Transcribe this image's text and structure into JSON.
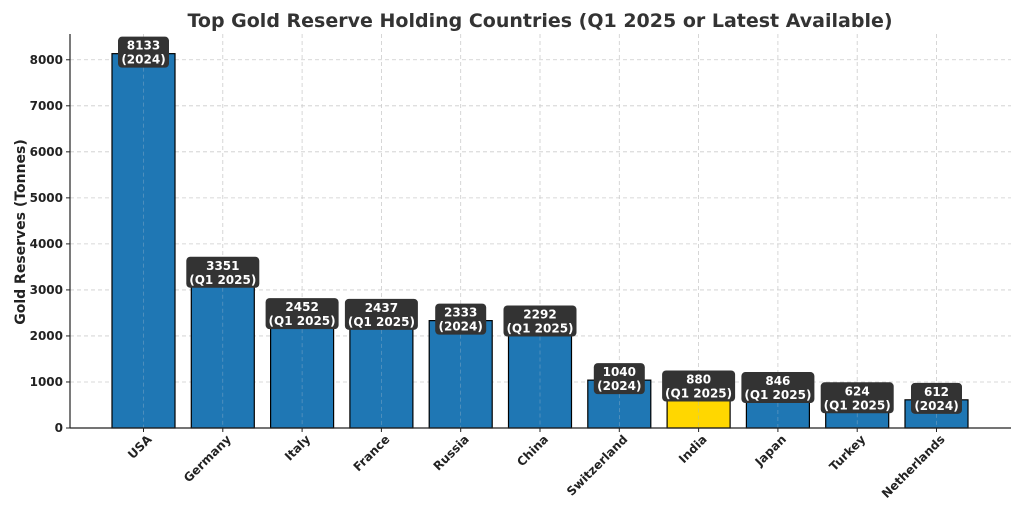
{
  "chart_data": {
    "type": "bar",
    "title": "Top Gold Reserve Holding Countries (Q1 2025 or Latest Available)",
    "xlabel": "",
    "ylabel": "Gold Reserves (Tonnes)",
    "ylim": [
      0,
      8560
    ],
    "yticks": [
      0,
      1000,
      2000,
      3000,
      4000,
      5000,
      6000,
      7000,
      8000
    ],
    "grid": true,
    "categories": [
      "USA",
      "Germany",
      "Italy",
      "France",
      "Russia",
      "China",
      "Switzerland",
      "India",
      "Japan",
      "Turkey",
      "Netherlands"
    ],
    "values": [
      8133,
      3351,
      2452,
      2437,
      2333,
      2292,
      1040,
      880,
      846,
      624,
      612
    ],
    "periods": [
      "(2024)",
      "(Q1 2025)",
      "(Q1 2025)",
      "(Q1 2025)",
      "(2024)",
      "(Q1 2025)",
      "(2024)",
      "(Q1 2025)",
      "(Q1 2025)",
      "(Q1 2025)",
      "(2024)"
    ],
    "colors": {
      "default_bar": "#1f77b4",
      "highlight_bar": "#ffd700",
      "label_box": "#333333",
      "label_text": "#ffffff"
    },
    "highlight": [
      "India"
    ]
  }
}
